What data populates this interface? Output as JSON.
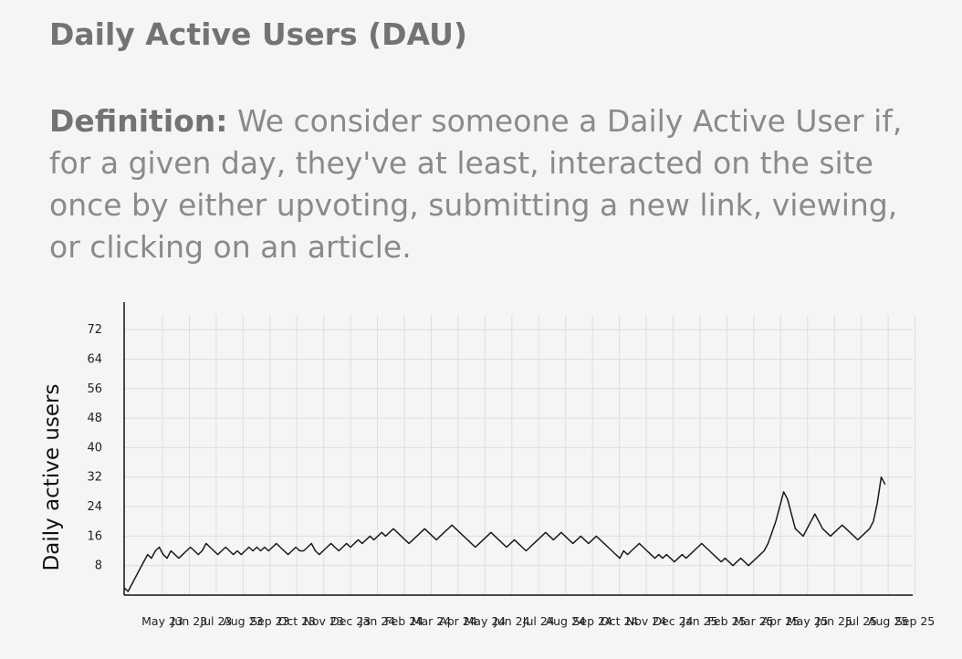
{
  "page": {
    "title": "Daily Active Users (DAU)",
    "definition_label": "Definition:",
    "definition_text": "We consider someone a Daily Active User if, for a given day, they've at least, interacted on the site once by either upvoting, submitting a new link, viewing, or clicking on an article."
  },
  "chart_data": {
    "type": "line",
    "title": "",
    "xlabel": "",
    "ylabel": "Daily active users",
    "ylim": [
      0,
      76
    ],
    "y_ticks": [
      8,
      16,
      24,
      32,
      40,
      48,
      56,
      64,
      72
    ],
    "x_ticks": [
      "May 23",
      "Jun 23",
      "Jul 23",
      "Aug 23",
      "Sep 23",
      "Oct 23",
      "Nov 23",
      "Dec 23",
      "Jan 24",
      "Feb 24",
      "Mar 24",
      "Apr 24",
      "May 24",
      "Jun 24",
      "Jul 24",
      "Aug 24",
      "Sep 24",
      "Oct 24",
      "Nov 24",
      "Dec 24",
      "Jan 25",
      "Feb 25",
      "Mar 25",
      "Apr 25",
      "May 25",
      "Jun 25",
      "Jul 25",
      "Aug 25",
      "Sep 25"
    ],
    "grid": true,
    "legend": "none",
    "line_color": "#1a1a1a",
    "series": [
      {
        "values": [
          2,
          1,
          3,
          5,
          7,
          9,
          11,
          10,
          12,
          13,
          11,
          10,
          12,
          11,
          10,
          11,
          12,
          13,
          12,
          11,
          12,
          14,
          13,
          12,
          11,
          12,
          13,
          12,
          11,
          12,
          11,
          12,
          13,
          12,
          13,
          12,
          13,
          12,
          13,
          14,
          13,
          12,
          11,
          12,
          13,
          12,
          12,
          13,
          14,
          12,
          11,
          12,
          13,
          14,
          13,
          12,
          13,
          14,
          13,
          14,
          15,
          14,
          15,
          16,
          15,
          16,
          17,
          16,
          17,
          18,
          17,
          16,
          15,
          14,
          15,
          16,
          17,
          18,
          17,
          16,
          15,
          16,
          17,
          18,
          19,
          18,
          17,
          16,
          15,
          14,
          13,
          14,
          15,
          16,
          17,
          16,
          15,
          14,
          13,
          14,
          15,
          14,
          13,
          12,
          13,
          14,
          15,
          16,
          17,
          16,
          15,
          16,
          17,
          16,
          15,
          14,
          15,
          16,
          15,
          14,
          15,
          16,
          15,
          14,
          13,
          12,
          11,
          10,
          12,
          11,
          12,
          13,
          14,
          13,
          12,
          11,
          10,
          11,
          10,
          11,
          10,
          9,
          10,
          11,
          10,
          11,
          12,
          13,
          14,
          13,
          12,
          11,
          10,
          9,
          10,
          9,
          8,
          9,
          10,
          9,
          8,
          9,
          10,
          11,
          12,
          14,
          17,
          20,
          24,
          28,
          26,
          22,
          18,
          17,
          16,
          18,
          20,
          22,
          20,
          18,
          17,
          16,
          17,
          18,
          19,
          18,
          17,
          16,
          15,
          16,
          17,
          18,
          20,
          25,
          32,
          30
        ]
      }
    ]
  }
}
